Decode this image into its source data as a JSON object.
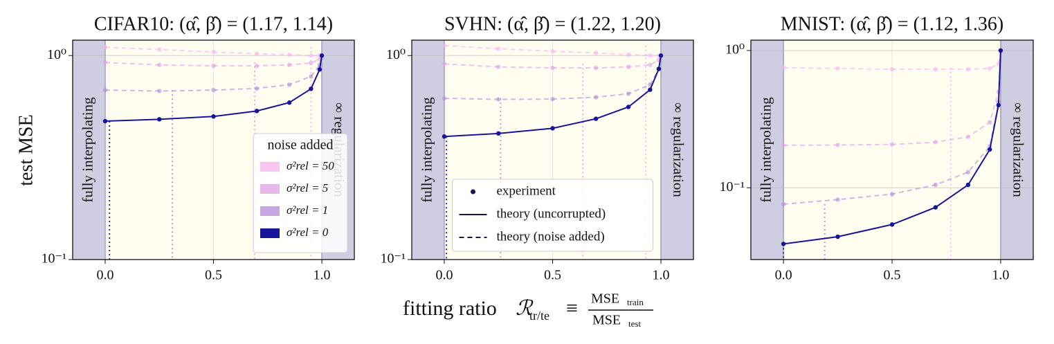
{
  "ylabel": "test MSE",
  "xlabel": {
    "text": "fitting ratio",
    "symbol": "ℛ",
    "symbol_sub": "tr/te",
    "equiv": "≡",
    "numerator": "MSE",
    "numerator_sub": "train",
    "denominator": "MSE",
    "denominator_sub": "test"
  },
  "chart_data": [
    {
      "type": "line",
      "title": "CIFAR10: (α̂, β̂) = (1.17, 1.14)",
      "region_labels": [
        "fully interpolating",
        "∞ regularization"
      ],
      "log_y": true,
      "grid": true,
      "xlim": [
        -0.15,
        1.15
      ],
      "ylim": [
        0.1,
        1.19
      ],
      "xticks": [
        {
          "value": 0,
          "label": "0.0"
        },
        0.5,
        {
          "value": 1,
          "label": "1.0"
        }
      ],
      "yticks": [
        {
          "value": 0.1,
          "label": "10⁻¹"
        },
        {
          "value": 1,
          "label": "10⁰"
        }
      ],
      "x": [
        0,
        0.25,
        0.5,
        0.7,
        0.85,
        0.95,
        0.99,
        1
      ],
      "legend": {
        "title": "noise added",
        "corner": "lower right"
      },
      "series": [
        {
          "name": "σ²rel = 50",
          "color": "#f9b8ec",
          "style": "dashed",
          "vline": 0.95,
          "values": [
            1.1,
            1.07,
            1.04,
            1.02,
            1.01,
            1.0,
            1.0,
            1.0
          ]
        },
        {
          "name": "σ²rel = 5",
          "color": "#e2a6e6",
          "style": "dashed",
          "vline": 0.69,
          "values": [
            0.925,
            0.9,
            0.89,
            0.89,
            0.9,
            0.92,
            0.96,
            1.0
          ]
        },
        {
          "name": "σ²rel = 1",
          "color": "#b692d8",
          "style": "dashed",
          "vline": 0.31,
          "values": [
            0.677,
            0.67,
            0.677,
            0.69,
            0.72,
            0.79,
            0.9,
            1.0
          ]
        },
        {
          "name": "σ²rel = 0",
          "color": "#16149a",
          "style": "solid",
          "vline": 0.02,
          "values": [
            0.477,
            0.487,
            0.503,
            0.535,
            0.588,
            0.687,
            0.855,
            1.0
          ]
        }
      ]
    },
    {
      "type": "line",
      "title": "SVHN: (α̂, β̂) = (1.22, 1.20)",
      "region_labels": [
        "fully interpolating",
        "∞ regularization"
      ],
      "log_y": true,
      "grid": true,
      "xlim": [
        -0.15,
        1.15
      ],
      "ylim": [
        0.1,
        1.19
      ],
      "xticks": [
        {
          "value": 0,
          "label": "0.0"
        },
        0.5,
        {
          "value": 1,
          "label": "1.0"
        }
      ],
      "yticks": [
        {
          "value": 0.1,
          "label": "10⁻¹"
        },
        {
          "value": 1,
          "label": "10⁰"
        }
      ],
      "x": [
        0,
        0.25,
        0.5,
        0.7,
        0.85,
        0.95,
        0.99,
        1
      ],
      "legend": {
        "corner": "lower center",
        "entries": [
          "experiment",
          "theory (uncorrupted)",
          "theory (noise added)"
        ],
        "color": "#0d1a4f"
      },
      "series": [
        {
          "color": "#f9b8ec",
          "style": "dashed",
          "vline": 0.93,
          "values": [
            1.12,
            1.08,
            1.05,
            1.03,
            1.01,
            1.0,
            1.0,
            1.0
          ]
        },
        {
          "color": "#e2a6e6",
          "style": "dashed",
          "vline": 0.64,
          "values": [
            0.91,
            0.88,
            0.87,
            0.87,
            0.88,
            0.9,
            0.95,
            1.0
          ]
        },
        {
          "color": "#b692d8",
          "style": "dashed",
          "vline": 0.26,
          "values": [
            0.617,
            0.61,
            0.612,
            0.625,
            0.65,
            0.72,
            0.86,
            1.0
          ]
        },
        {
          "color": "#16149a",
          "style": "solid",
          "vline": 0.01,
          "values": [
            0.401,
            0.415,
            0.44,
            0.49,
            0.56,
            0.68,
            0.86,
            1.0
          ]
        }
      ]
    },
    {
      "type": "line",
      "title": "MNIST: (α̂, β̂) = (1.12, 1.36)",
      "region_labels": [
        "fully interpolating",
        "∞ regularization"
      ],
      "log_y": true,
      "grid": true,
      "xlim": [
        -0.15,
        1.15
      ],
      "ylim": [
        0.03,
        1.19
      ],
      "xticks": [
        {
          "value": 0,
          "label": "0.0"
        },
        0.5,
        {
          "value": 1,
          "label": "1.0"
        }
      ],
      "yticks": [
        {
          "value": 0.1,
          "label": "10⁻¹"
        },
        {
          "value": 1,
          "label": "10⁰"
        }
      ],
      "x": [
        0,
        0.25,
        0.5,
        0.7,
        0.85,
        0.95,
        0.99,
        1
      ],
      "series": [
        {
          "color": "#f9b8ec",
          "style": "dashed",
          "vline": 0.77,
          "values": [
            0.75,
            0.74,
            0.73,
            0.73,
            0.73,
            0.74,
            0.8,
            1.0
          ]
        },
        {
          "color": "#e2a6e6",
          "style": "dashed",
          "vline": null,
          "values": [
            0.204,
            0.205,
            0.207,
            0.215,
            0.235,
            0.3,
            0.5,
            1.0
          ]
        },
        {
          "color": "#b692d8",
          "style": "dashed",
          "vline": 0.19,
          "values": [
            0.076,
            0.082,
            0.09,
            0.105,
            0.13,
            0.2,
            0.42,
            1.0
          ]
        },
        {
          "color": "#16149a",
          "style": "solid",
          "vline": 0.0,
          "values": [
            0.039,
            0.044,
            0.054,
            0.072,
            0.105,
            0.19,
            0.4,
            1.0
          ]
        }
      ]
    }
  ]
}
